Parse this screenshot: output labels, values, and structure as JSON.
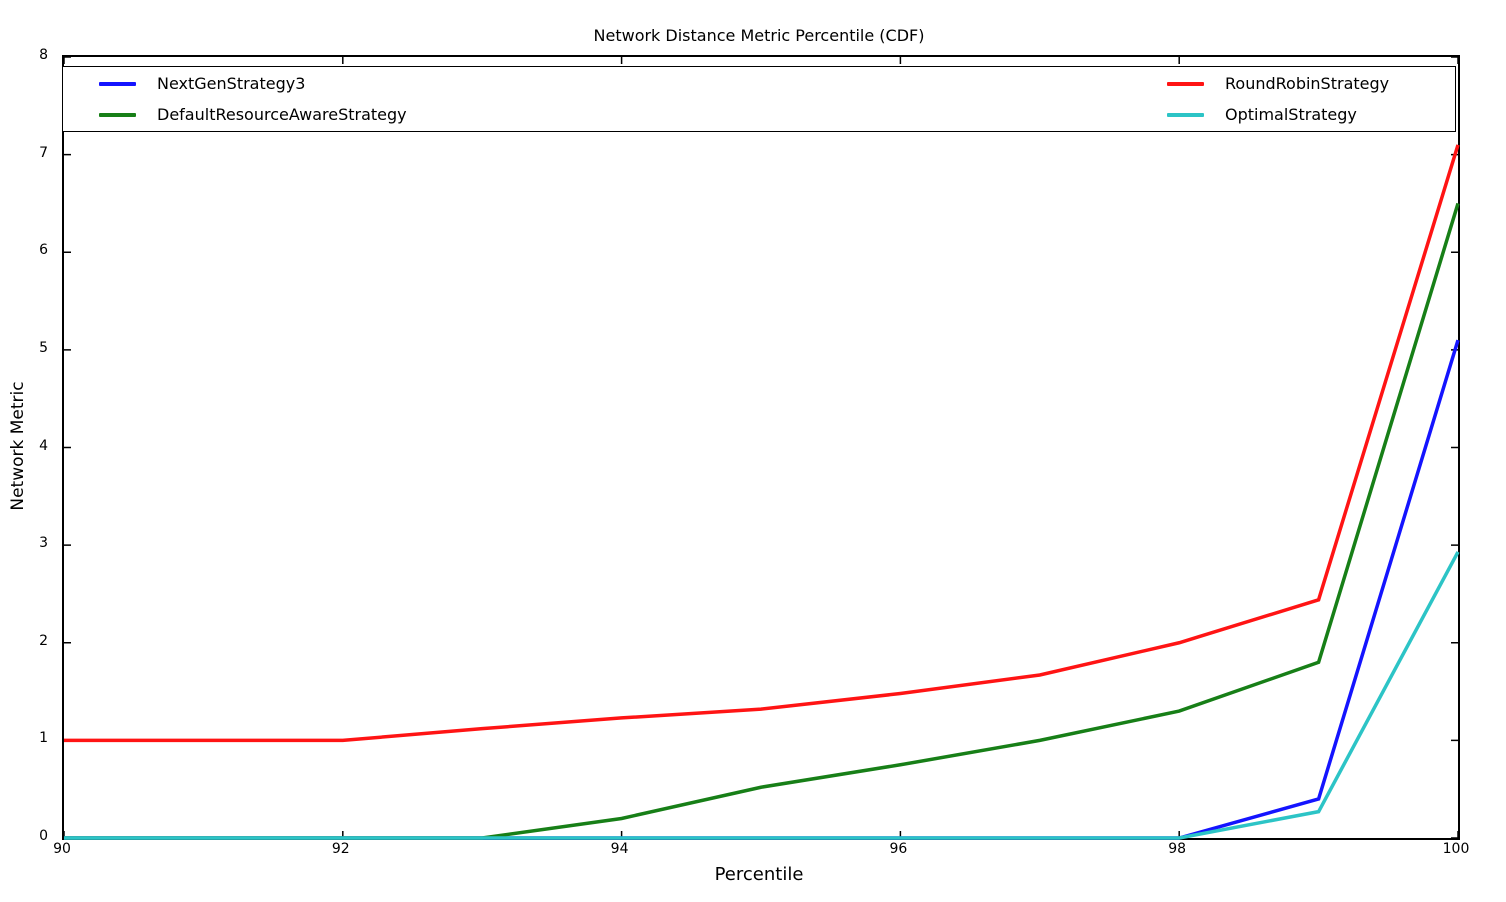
{
  "chart_data": {
    "type": "line",
    "title": "Network Distance Metric Percentile (CDF)",
    "xlabel": "Percentile",
    "ylabel": "Network Metric",
    "xlim": [
      90,
      100
    ],
    "ylim": [
      0,
      8
    ],
    "xticks": [
      90,
      92,
      94,
      96,
      98,
      100
    ],
    "yticks": [
      0,
      1,
      2,
      3,
      4,
      5,
      6,
      7,
      8
    ],
    "grid": false,
    "legend": {
      "position": "top-full-width-inside-axes",
      "columns": 2,
      "left_column_series": [
        "NextGenStrategy3",
        "DefaultResourceAwareStrategy"
      ],
      "right_column_series": [
        "RoundRobinStrategy",
        "OptimalStrategy"
      ]
    },
    "x": [
      90,
      91,
      92,
      93,
      94,
      95,
      96,
      97,
      98,
      99,
      100
    ],
    "series": [
      {
        "name": "NextGenStrategy3",
        "color": "#1414ff",
        "values": [
          0,
          0,
          0,
          0,
          0,
          0,
          0,
          0,
          0,
          0.4,
          5.1
        ]
      },
      {
        "name": "DefaultResourceAwareStrategy",
        "color": "#177f17",
        "values": [
          0,
          0,
          0,
          0,
          0.2,
          0.52,
          0.75,
          1.0,
          1.3,
          1.8,
          6.5
        ]
      },
      {
        "name": "RoundRobinStrategy",
        "color": "#ff1414",
        "values": [
          1.0,
          1.0,
          1.0,
          1.12,
          1.23,
          1.32,
          1.48,
          1.67,
          2.0,
          2.44,
          7.1
        ]
      },
      {
        "name": "OptimalStrategy",
        "color": "#2cc4c6",
        "values": [
          0,
          0,
          0,
          0,
          0,
          0,
          0,
          0,
          0,
          0.27,
          2.93
        ]
      }
    ]
  }
}
